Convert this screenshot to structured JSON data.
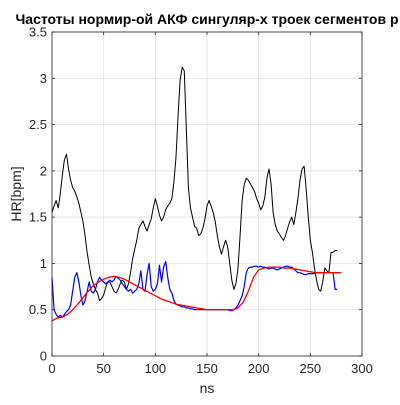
{
  "chart_data": {
    "type": "line",
    "title": "Частоты нормир-ой АКФ сингуляр-х троек сегментов р",
    "xlabel": "ns",
    "ylabel": "HR[bpm]",
    "xlim": [
      0,
      300
    ],
    "ylim": [
      0,
      3.5
    ],
    "x_ticks": [
      0,
      50,
      100,
      150,
      200,
      250,
      300
    ],
    "y_ticks": [
      0,
      0.5,
      1,
      1.5,
      2,
      2.5,
      3,
      3.5
    ],
    "x_tick_labels": [
      "0",
      "50",
      "100",
      "150",
      "200",
      "250",
      "300"
    ],
    "y_tick_labels": [
      "0",
      "0.5",
      "1",
      "1.5",
      "2",
      "2.5",
      "3",
      "3.5"
    ],
    "grid": true,
    "series": [
      {
        "color": "#000000",
        "x": [
          0,
          2,
          4,
          6,
          8,
          10,
          12,
          14,
          16,
          18,
          20,
          22,
          24,
          26,
          28,
          30,
          32,
          34,
          36,
          38,
          40,
          42,
          44,
          46,
          48,
          50,
          52,
          54,
          56,
          58,
          60,
          62,
          64,
          66,
          68,
          70,
          72,
          74,
          76,
          78,
          80,
          82,
          84,
          86,
          88,
          90,
          92,
          94,
          96,
          98,
          100,
          102,
          104,
          106,
          108,
          110,
          112,
          114,
          116,
          118,
          120,
          122,
          124,
          126,
          128,
          130,
          132,
          134,
          136,
          138,
          140,
          142,
          144,
          146,
          148,
          150,
          152,
          154,
          156,
          158,
          160,
          162,
          164,
          166,
          168,
          170,
          172,
          174,
          176,
          178,
          180,
          182,
          184,
          186,
          188,
          190,
          192,
          194,
          196,
          198,
          200,
          202,
          204,
          206,
          208,
          210,
          212,
          214,
          216,
          218,
          220,
          222,
          224,
          226,
          228,
          230,
          232,
          234,
          236,
          238,
          240,
          242,
          244,
          246,
          248,
          250,
          252,
          254,
          256,
          258,
          260,
          262,
          264,
          266,
          268,
          270,
          272,
          274,
          276
        ],
        "y": [
          1.55,
          1.62,
          1.68,
          1.6,
          1.75,
          1.95,
          2.12,
          2.18,
          2.02,
          1.9,
          1.82,
          1.78,
          1.72,
          1.65,
          1.55,
          1.45,
          1.3,
          1.12,
          0.98,
          0.85,
          0.78,
          0.72,
          0.68,
          0.6,
          0.62,
          0.66,
          0.74,
          0.8,
          0.8,
          0.75,
          0.7,
          0.68,
          0.72,
          0.78,
          0.82,
          0.8,
          0.72,
          0.78,
          0.9,
          1.05,
          1.15,
          1.25,
          1.38,
          1.42,
          1.46,
          1.4,
          1.35,
          1.42,
          1.48,
          1.6,
          1.7,
          1.62,
          1.52,
          1.46,
          1.5,
          1.58,
          1.62,
          1.65,
          1.7,
          1.88,
          2.15,
          2.6,
          2.98,
          3.12,
          3.08,
          2.45,
          1.82,
          1.6,
          1.5,
          1.4,
          1.38,
          1.3,
          1.32,
          1.38,
          1.48,
          1.62,
          1.68,
          1.62,
          1.55,
          1.45,
          1.3,
          1.18,
          1.1,
          1.18,
          1.25,
          1.18,
          1.0,
          0.82,
          0.72,
          0.78,
          0.95,
          1.3,
          1.68,
          1.85,
          1.92,
          1.9,
          1.86,
          1.82,
          1.78,
          1.7,
          1.65,
          1.58,
          1.62,
          1.72,
          1.92,
          2.02,
          1.86,
          1.55,
          1.42,
          1.35,
          1.32,
          1.28,
          1.25,
          1.3,
          1.38,
          1.45,
          1.5,
          1.42,
          1.55,
          1.7,
          1.9,
          2.02,
          2.05,
          1.8,
          1.5,
          1.25,
          1.12,
          0.95,
          0.82,
          0.72,
          0.7,
          0.8,
          0.95,
          0.92,
          0.9,
          1.12,
          1.12,
          1.14,
          1.14
        ]
      },
      {
        "color": "#0000ff",
        "x": [
          0,
          2,
          4,
          6,
          8,
          10,
          12,
          14,
          16,
          18,
          20,
          22,
          24,
          26,
          28,
          30,
          32,
          34,
          36,
          38,
          40,
          42,
          44,
          46,
          48,
          50,
          52,
          54,
          56,
          58,
          60,
          62,
          64,
          66,
          68,
          70,
          72,
          74,
          76,
          78,
          80,
          82,
          84,
          86,
          88,
          90,
          92,
          94,
          96,
          98,
          100,
          102,
          104,
          106,
          108,
          110,
          112,
          114,
          116,
          118,
          120,
          122,
          124,
          126,
          128,
          130,
          132,
          134,
          136,
          138,
          140,
          142,
          144,
          146,
          148,
          150,
          152,
          154,
          156,
          158,
          160,
          162,
          164,
          166,
          168,
          170,
          172,
          174,
          176,
          178,
          180,
          182,
          184,
          186,
          188,
          190,
          192,
          194,
          196,
          198,
          200,
          202,
          204,
          206,
          208,
          210,
          212,
          214,
          216,
          218,
          220,
          222,
          224,
          226,
          228,
          230,
          232,
          234,
          236,
          238,
          240,
          242,
          244,
          246,
          248,
          250,
          252,
          254,
          256,
          258,
          260,
          262,
          264,
          266,
          268,
          270,
          272,
          274,
          276
        ],
        "y": [
          0.85,
          0.5,
          0.45,
          0.42,
          0.44,
          0.42,
          0.45,
          0.48,
          0.5,
          0.55,
          0.7,
          0.85,
          0.9,
          0.8,
          0.65,
          0.55,
          0.6,
          0.7,
          0.8,
          0.7,
          0.68,
          0.72,
          0.8,
          0.85,
          0.82,
          0.8,
          0.78,
          0.8,
          0.82,
          0.8,
          0.82,
          0.86,
          0.84,
          0.82,
          0.78,
          0.75,
          0.72,
          0.7,
          0.72,
          0.68,
          0.7,
          0.72,
          0.78,
          0.92,
          0.72,
          0.7,
          0.88,
          1.0,
          0.75,
          0.7,
          0.72,
          0.78,
          0.98,
          0.8,
          0.96,
          1.02,
          0.85,
          0.72,
          0.68,
          0.6,
          0.56,
          0.55,
          0.54,
          0.53,
          0.53,
          0.52,
          0.52,
          0.51,
          0.51,
          0.5,
          0.5,
          0.5,
          0.5,
          0.5,
          0.5,
          0.5,
          0.5,
          0.5,
          0.5,
          0.5,
          0.5,
          0.5,
          0.5,
          0.5,
          0.5,
          0.5,
          0.49,
          0.49,
          0.5,
          0.52,
          0.55,
          0.6,
          0.65,
          0.75,
          0.9,
          0.95,
          0.96,
          0.96,
          0.97,
          0.97,
          0.96,
          0.97,
          0.96,
          0.96,
          0.95,
          0.94,
          0.95,
          0.95,
          0.94,
          0.93,
          0.94,
          0.95,
          0.96,
          0.97,
          0.97,
          0.96,
          0.96,
          0.94,
          0.92,
          0.9,
          0.9,
          0.89,
          0.88,
          0.88,
          0.89,
          0.89,
          0.89,
          0.89,
          0.9,
          0.9,
          0.9,
          0.9,
          0.9,
          0.9,
          0.9,
          0.9,
          0.9,
          0.72,
          0.72
        ]
      },
      {
        "color": "#ff0000",
        "x": [
          0,
          5,
          10,
          15,
          20,
          25,
          30,
          35,
          40,
          45,
          50,
          55,
          60,
          65,
          70,
          75,
          80,
          85,
          90,
          95,
          100,
          105,
          110,
          115,
          120,
          125,
          130,
          135,
          140,
          145,
          150,
          155,
          160,
          165,
          170,
          175,
          180,
          185,
          190,
          195,
          200,
          205,
          210,
          215,
          220,
          225,
          230,
          235,
          240,
          245,
          250,
          255,
          260,
          265,
          270,
          275,
          280
        ],
        "y": [
          0.38,
          0.41,
          0.42,
          0.45,
          0.5,
          0.56,
          0.63,
          0.7,
          0.76,
          0.8,
          0.83,
          0.85,
          0.86,
          0.85,
          0.83,
          0.8,
          0.77,
          0.74,
          0.71,
          0.68,
          0.65,
          0.62,
          0.6,
          0.58,
          0.56,
          0.55,
          0.54,
          0.53,
          0.52,
          0.51,
          0.5,
          0.5,
          0.5,
          0.5,
          0.5,
          0.5,
          0.52,
          0.58,
          0.7,
          0.85,
          0.93,
          0.95,
          0.96,
          0.96,
          0.96,
          0.95,
          0.95,
          0.94,
          0.93,
          0.92,
          0.91,
          0.9,
          0.9,
          0.9,
          0.9,
          0.9,
          0.9
        ]
      }
    ]
  }
}
